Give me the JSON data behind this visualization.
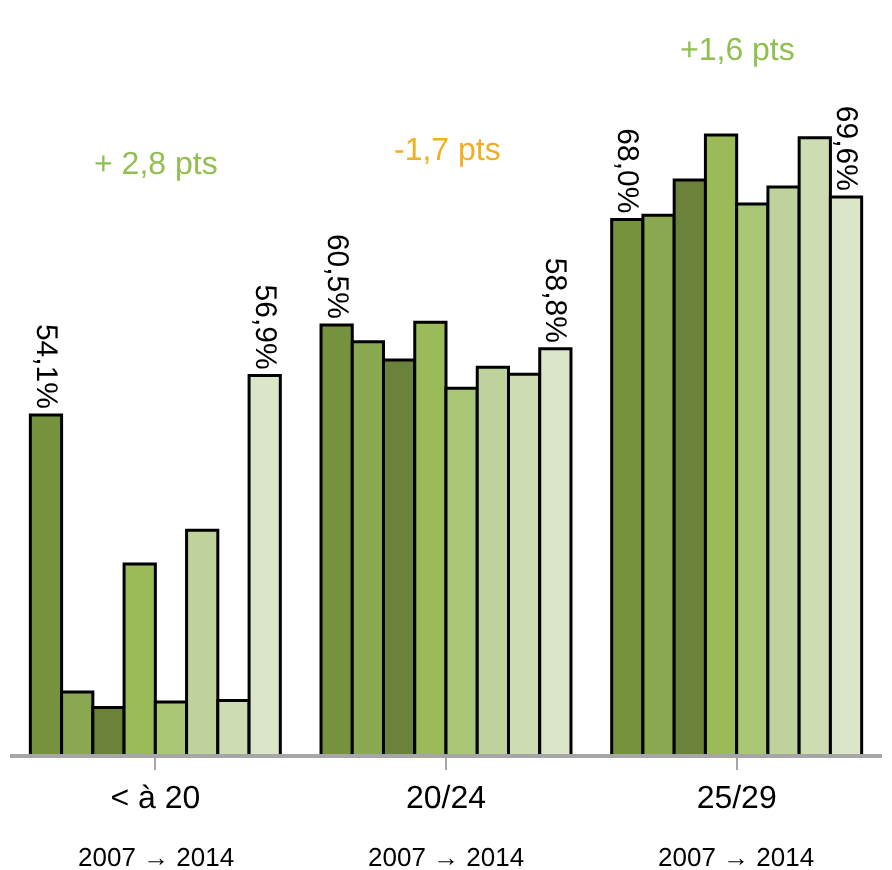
{
  "chart_data": {
    "type": "bar",
    "categories": [
      "< à 20",
      "20/24",
      "25/29"
    ],
    "ylim": [
      30,
      83.6
    ],
    "tick_labels": "x",
    "series": [
      {
        "color": "#77923c",
        "values": [
          54.1,
          60.5,
          68.0
        ],
        "value_labels": [
          "54,1%",
          "60,5%",
          "68,0%"
        ]
      },
      {
        "color": "#8aa84f",
        "values": [
          34.4,
          59.3,
          68.3
        ]
      },
      {
        "color": "#6b823a",
        "values": [
          33.3,
          58.0,
          70.8
        ]
      },
      {
        "color": "#9bbb59",
        "values": [
          43.5,
          60.7,
          74.0
        ]
      },
      {
        "color": "#a9c674",
        "values": [
          33.7,
          56.0,
          69.1
        ]
      },
      {
        "color": "#bdd39b",
        "values": [
          45.9,
          57.5,
          70.3
        ]
      },
      {
        "color": "#cddcb2",
        "values": [
          33.8,
          57.0,
          73.8
        ]
      },
      {
        "color": "#dbe5c8",
        "values": [
          56.9,
          58.8,
          69.6
        ],
        "value_labels": [
          "56,9%",
          "58,8%",
          "69,6%"
        ]
      }
    ],
    "annotations": [
      "+ 2,8 pts",
      "-1,7 pts",
      "+1,6 pts",
      "2007 → 2014",
      "2007 → 2014",
      "2007 → 2014"
    ]
  }
}
